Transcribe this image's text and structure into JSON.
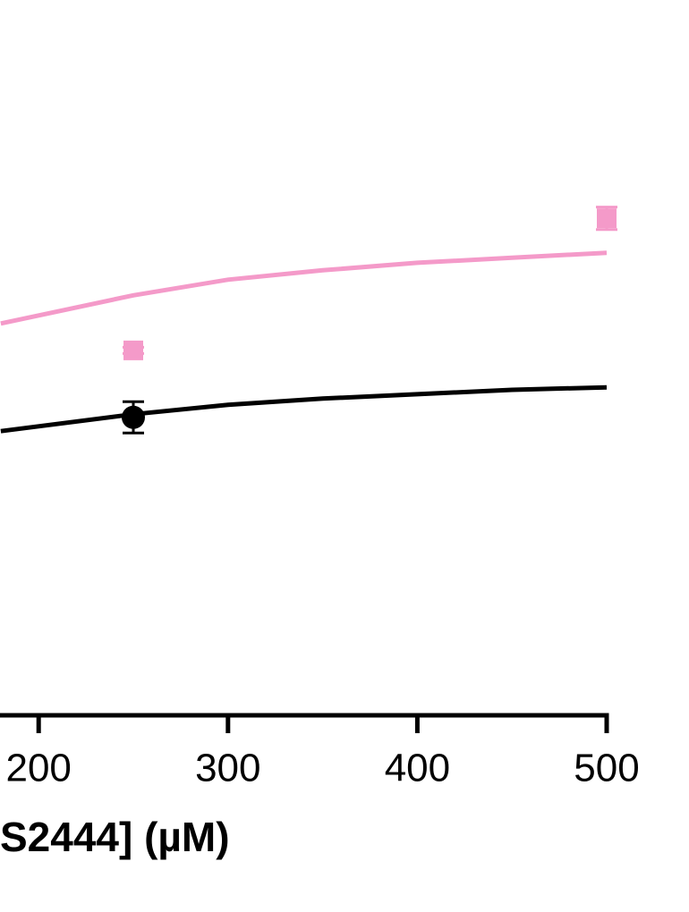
{
  "chart_data": {
    "type": "line",
    "x_label": "S2444] (µM)",
    "xlim": [
      0,
      500
    ],
    "xticks": [
      200,
      300,
      400,
      500
    ],
    "ylim": [
      0,
      100
    ],
    "series": [
      {
        "color": "#f49ac9",
        "mode": "line",
        "x": [
          180,
          250,
          300,
          350,
          400,
          450,
          500
        ],
        "values": [
          62.6,
          67.1,
          69.6,
          71.1,
          72.3,
          73.1,
          73.9
        ]
      },
      {
        "color": "#000000",
        "mode": "line",
        "x": [
          180,
          250,
          300,
          350,
          400,
          450,
          500
        ],
        "values": [
          45.4,
          48.1,
          49.6,
          50.6,
          51.3,
          52.0,
          52.4
        ]
      },
      {
        "color": "#f49ac9",
        "mode": "markers",
        "marker": "square",
        "x": [
          250,
          500
        ],
        "values": [
          58.3,
          79.4
        ],
        "errors": [
          0.5,
          1.8
        ]
      },
      {
        "color": "#000000",
        "mode": "markers",
        "marker": "circle",
        "x": [
          250
        ],
        "values": [
          47.6
        ],
        "errors": [
          2.5
        ]
      }
    ]
  }
}
